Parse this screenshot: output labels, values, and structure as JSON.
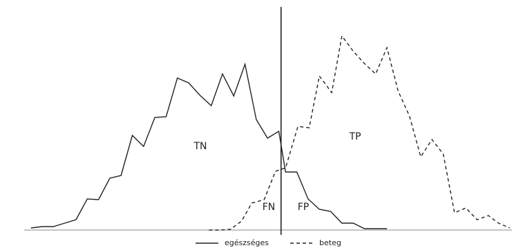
{
  "chart_data": {
    "type": "line",
    "series": [
      {
        "name": "egészséges",
        "color": "#222222",
        "linestyle": "solid",
        "x": [
          0,
          1,
          2,
          3,
          4,
          5,
          6,
          7,
          8,
          9,
          10,
          11,
          12,
          13,
          14,
          15,
          16,
          17,
          18,
          19,
          20,
          21,
          22,
          22.6,
          23.6,
          24.6,
          25.6,
          26.6,
          27.6,
          28.6,
          29.6,
          30.6,
          31.6
        ],
        "values": [
          3,
          5,
          5,
          10,
          15,
          45,
          44,
          75,
          79,
          137,
          121,
          163,
          164,
          220,
          213,
          195,
          180,
          226,
          194,
          240,
          160,
          133,
          143,
          84,
          84,
          45,
          30,
          27,
          10,
          10,
          2,
          2,
          2
        ]
      },
      {
        "name": "beteg",
        "color": "#222222",
        "linestyle": "dashed",
        "x": [
          15.8,
          16.7,
          17.7,
          18.7,
          19.6,
          20.7,
          21.7,
          22.6,
          23.7,
          24.7,
          25.6,
          26.7,
          27.6,
          28.6,
          29.6,
          30.6,
          31.6,
          32.6,
          33.6,
          34.6,
          35.6,
          36.6,
          37.6,
          38.6,
          39.6,
          40.6,
          41.5,
          42.5
        ],
        "values": [
          0,
          0,
          1,
          13,
          39,
          44,
          85,
          90,
          150,
          148,
          223,
          199,
          281,
          259,
          241,
          226,
          264,
          201,
          165,
          106,
          131,
          110,
          25,
          32,
          15,
          21,
          10,
          3
        ]
      }
    ],
    "threshold": 22.2,
    "annotations": [
      "TN",
      "TP",
      "FN",
      "FP"
    ],
    "xlim": [
      -0.6,
      42.7
    ],
    "ylim": [
      0,
      323
    ]
  }
}
